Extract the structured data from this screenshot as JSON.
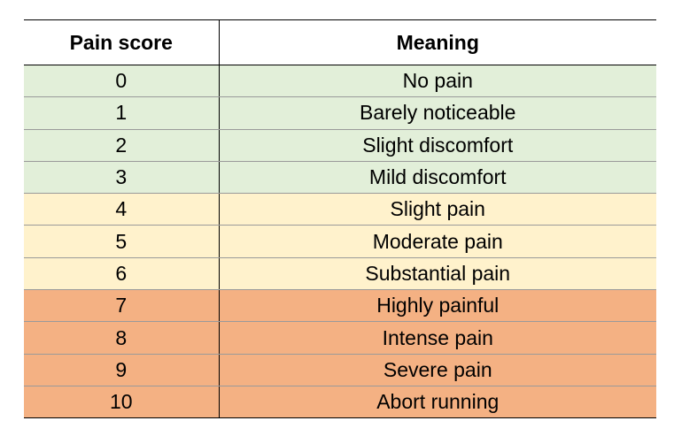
{
  "table": {
    "headers": {
      "score": "Pain score",
      "meaning": "Meaning"
    },
    "colors": {
      "green": "#e2efd9",
      "yellow": "#fff2cc",
      "orange": "#f4b183"
    },
    "rows": [
      {
        "score": "0",
        "meaning": "No pain",
        "level": "green"
      },
      {
        "score": "1",
        "meaning": "Barely noticeable",
        "level": "green"
      },
      {
        "score": "2",
        "meaning": "Slight discomfort",
        "level": "green"
      },
      {
        "score": "3",
        "meaning": "Mild discomfort",
        "level": "green"
      },
      {
        "score": "4",
        "meaning": "Slight pain",
        "level": "yellow"
      },
      {
        "score": "5",
        "meaning": "Moderate pain",
        "level": "yellow"
      },
      {
        "score": "6",
        "meaning": "Substantial pain",
        "level": "yellow"
      },
      {
        "score": "7",
        "meaning": "Highly painful",
        "level": "orange"
      },
      {
        "score": "8",
        "meaning": "Intense pain",
        "level": "orange"
      },
      {
        "score": "9",
        "meaning": "Severe pain",
        "level": "orange"
      },
      {
        "score": "10",
        "meaning": "Abort running",
        "level": "orange"
      }
    ]
  }
}
